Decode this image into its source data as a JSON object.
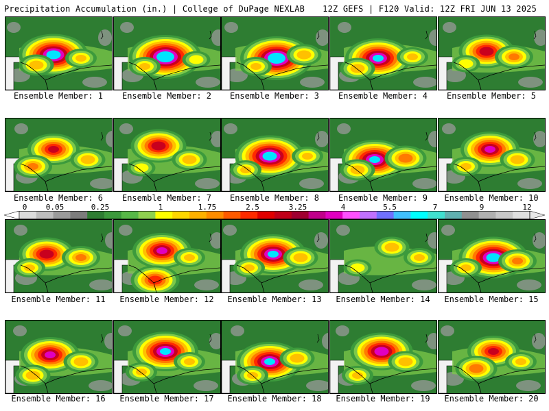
{
  "header": {
    "title_left": "Precipitation Accumulation (in.) | College of DuPage NEXLAB",
    "title_right": "12Z GEFS | F120 Valid: 12Z FRI JUN 13 2025"
  },
  "panels": [
    {
      "label": "Ensemble Member: 1"
    },
    {
      "label": "Ensemble Member: 2"
    },
    {
      "label": "Ensemble Member: 3"
    },
    {
      "label": "Ensemble Member: 4"
    },
    {
      "label": "Ensemble Member: 5"
    },
    {
      "label": "Ensemble Member: 6"
    },
    {
      "label": "Ensemble Member: 7"
    },
    {
      "label": "Ensemble Member: 8"
    },
    {
      "label": "Ensemble Member: 9"
    },
    {
      "label": "Ensemble Member: 10"
    },
    {
      "label": "Ensemble Member: 11"
    },
    {
      "label": "Ensemble Member: 12"
    },
    {
      "label": "Ensemble Member: 13"
    },
    {
      "label": "Ensemble Member: 14"
    },
    {
      "label": "Ensemble Member: 15"
    },
    {
      "label": "Ensemble Member: 16"
    },
    {
      "label": "Ensemble Member: 17"
    },
    {
      "label": "Ensemble Member: 18"
    },
    {
      "label": "Ensemble Member: 19"
    },
    {
      "label": "Ensemble Member: 20"
    }
  ],
  "colorbar": {
    "tick_labels": [
      "0",
      "0.05",
      "0.25",
      "1",
      "1.75",
      "2.5",
      "3.25",
      "4",
      "5.5",
      "7",
      "9",
      "12"
    ],
    "colors": [
      "#dcdcdc",
      "#bdbdbd",
      "#9a9a9a",
      "#7c7c7c",
      "#2e7d32",
      "#3c9a3c",
      "#57b847",
      "#8fd14f",
      "#ffff00",
      "#ffd700",
      "#ffb000",
      "#ff8c00",
      "#ff5a00",
      "#ff2a00",
      "#e00000",
      "#c00018",
      "#a00030",
      "#c0008a",
      "#e000c0",
      "#ff50ff",
      "#c070ff",
      "#7070ff",
      "#40c0ff",
      "#00ffff",
      "#40e0d0",
      "#60b0b0",
      "#909090",
      "#b0b0b0",
      "#c8c8c8",
      "#e0e0e0"
    ]
  }
}
